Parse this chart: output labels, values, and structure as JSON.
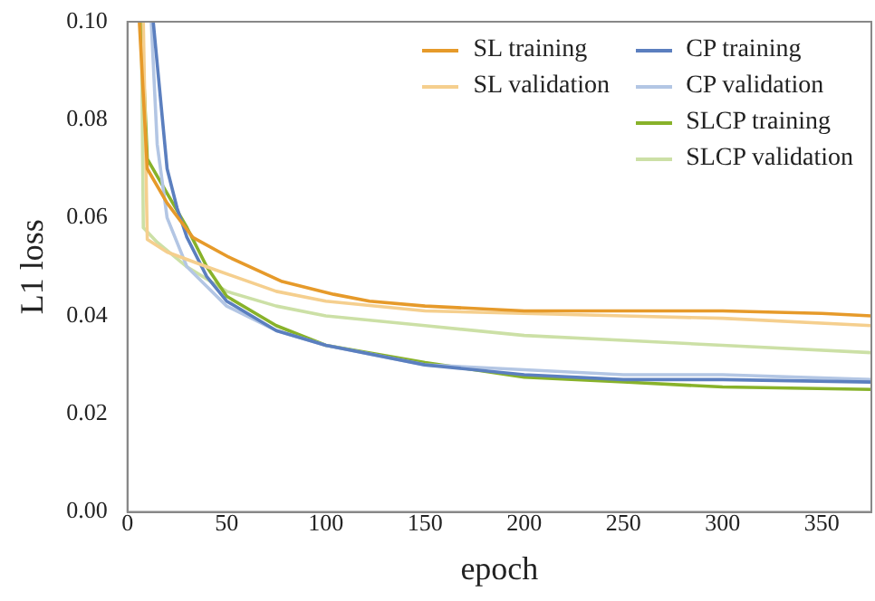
{
  "chart_data": {
    "type": "line",
    "xlabel": "epoch",
    "ylabel": "L1 loss",
    "xlim": [
      0,
      375
    ],
    "ylim": [
      0,
      0.1
    ],
    "xticks": [
      0,
      50,
      100,
      150,
      200,
      250,
      300,
      350
    ],
    "yticks": [
      {
        "value": 0,
        "label": "0.00"
      },
      {
        "value": 0.02,
        "label": "0.02"
      },
      {
        "value": 0.04,
        "label": "0.04"
      },
      {
        "value": 0.06,
        "label": "0.06"
      },
      {
        "value": 0.08,
        "label": "0.08"
      },
      {
        "value": 0.1,
        "label": "0.10"
      }
    ],
    "grid": false,
    "legend": "top right",
    "marker": "none",
    "line_style": "solid",
    "series": [
      {
        "name": "SL training",
        "color": "#e69a2a",
        "x": [
          6,
          10,
          20,
          33,
          51,
          78,
          104,
          122,
          150,
          200,
          250,
          300,
          350,
          375
        ],
        "values": [
          0.1,
          0.07,
          0.063,
          0.056,
          0.052,
          0.047,
          0.0444,
          0.043,
          0.042,
          0.041,
          0.041,
          0.041,
          0.0405,
          0.04
        ]
      },
      {
        "name": "SL validation",
        "color": "#f5cf8e",
        "x": [
          8,
          10,
          20,
          40,
          75,
          100,
          150,
          250,
          300,
          375
        ],
        "values": [
          0.1,
          0.0556,
          0.053,
          0.05,
          0.045,
          0.043,
          0.041,
          0.04,
          0.0395,
          0.038
        ]
      },
      {
        "name": "CP training",
        "color": "#5b7fbf",
        "x": [
          13,
          20,
          25,
          30,
          40,
          50,
          75,
          100,
          150,
          200,
          250,
          300,
          375
        ],
        "values": [
          0.1,
          0.07,
          0.062,
          0.056,
          0.048,
          0.043,
          0.037,
          0.034,
          0.03,
          0.028,
          0.027,
          0.027,
          0.0265
        ]
      },
      {
        "name": "CP validation",
        "color": "#b3c6e4",
        "x": [
          12,
          15,
          20,
          30,
          40,
          50,
          75,
          100,
          150,
          200,
          250,
          300,
          375
        ],
        "values": [
          0.1,
          0.075,
          0.06,
          0.05,
          0.046,
          0.042,
          0.037,
          0.034,
          0.03,
          0.029,
          0.028,
          0.028,
          0.027
        ]
      },
      {
        "name": "SLCP training",
        "color": "#88b22a",
        "x": [
          7,
          10,
          20,
          30,
          40,
          50,
          75,
          100,
          150,
          200,
          250,
          300,
          375
        ],
        "values": [
          0.1,
          0.072,
          0.065,
          0.058,
          0.05,
          0.044,
          0.038,
          0.034,
          0.0305,
          0.0275,
          0.0265,
          0.0255,
          0.025
        ]
      },
      {
        "name": "SLCP validation",
        "color": "#cce0a6",
        "x": [
          7,
          8,
          15,
          30,
          50,
          75,
          100,
          150,
          200,
          250,
          300,
          375
        ],
        "values": [
          0.1,
          0.058,
          0.055,
          0.05,
          0.045,
          0.042,
          0.04,
          0.038,
          0.036,
          0.035,
          0.034,
          0.0325
        ]
      }
    ]
  }
}
